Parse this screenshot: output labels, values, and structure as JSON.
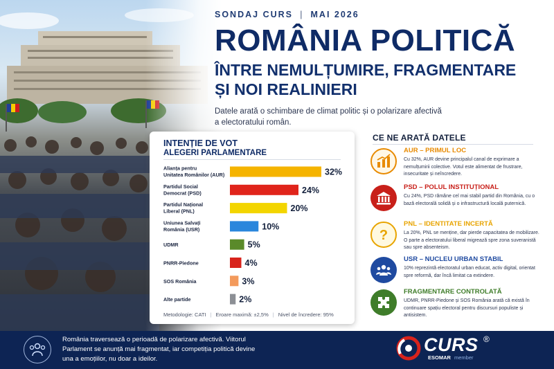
{
  "header": {
    "kicker_left": "SONDAJ CURS",
    "kicker_sep": "|",
    "kicker_right": "MAI 2026",
    "title": "ROMÂNIA POLITICĂ",
    "subtitle_line1": "ÎNTRE NEMULȚUMIRE, FRAGMENTARE",
    "subtitle_line2": "ȘI NOI REALINIERI",
    "lead": "Datele arată o schimbare de climat politic și o polarizare afectivă a electoratului român."
  },
  "chart_card": {
    "title": "INTENȚIE DE VOT",
    "subtitle": "ALEGERI PARLAMENTARE",
    "footer": {
      "method": "Metodologie: CATI",
      "error": "Eroare maximă: ±2,5%",
      "confidence": "Nivel de încredere: 95%",
      "separator": "|"
    }
  },
  "chart_data": {
    "type": "bar",
    "orientation": "horizontal",
    "title": "INTENȚIE DE VOT",
    "subtitle": "ALEGERI PARLAMENTARE",
    "categories": [
      [
        "Alianța pentru",
        "Unitatea Românilor (AUR)"
      ],
      [
        "Partidul Social",
        "Democrat (PSD)"
      ],
      [
        "Partidul Național",
        "Liberal (PNL)"
      ],
      [
        "Uniunea Salvați",
        "România (USR)"
      ],
      [
        "UDMR"
      ],
      [
        "PNRR-Piedone"
      ],
      [
        "SOS România"
      ],
      [
        "Alte partide"
      ]
    ],
    "values": [
      32,
      24,
      20,
      10,
      5,
      4,
      3,
      2
    ],
    "value_labels": [
      "32%",
      "24%",
      "20%",
      "10%",
      "5%",
      "4%",
      "3%",
      "2%"
    ],
    "colors": [
      "#f5b400",
      "#e0241b",
      "#f3d500",
      "#2a86dc",
      "#5a8a2a",
      "#d8231c",
      "#f39a5c",
      "#8c8f95"
    ],
    "xlim": [
      0,
      32
    ],
    "unit": "%",
    "grid": false,
    "legend": "none"
  },
  "insights": {
    "title": "CE NE ARATĂ DATELE",
    "items": [
      {
        "heading": "AUR – PRIMUL LOC",
        "color": "#e88a00",
        "icon": "bar-chart-icon",
        "text": "Cu 32%, AUR devine principalul canal de exprimare a nemulțumirii colective. Votul este alimentat de frustrare, insecuritate și neîncredere."
      },
      {
        "heading": "PSD – POLUL INSTITUȚIONAL",
        "color": "#c8201a",
        "icon": "institution-icon",
        "text": "Cu 24%, PSD rămâne cel mai stabil partid din România, cu o bază electorală solidă și o infrastructură locală puternică."
      },
      {
        "heading": "PNL – IDENTITATE INCERTĂ",
        "color": "#e8a400",
        "icon": "question-icon",
        "text": "La 20%, PNL se menține, dar pierde capacitatea de mobilizare. O parte a electoratului liberal migrează spre zona suveranistă sau spre absenteism."
      },
      {
        "heading": "USR – NUCLEU URBAN STABIL",
        "color": "#1f4aa0",
        "icon": "people-icon",
        "text": "10% reprezintă electoratul urban educat, activ digital, orientat spre reformă, dar încă limitat ca extindere."
      },
      {
        "heading": "FRAGMENTARE CONTROLATĂ",
        "color": "#3f7d2a",
        "icon": "puzzle-icon",
        "text": "UDMR, PNRR-Piedone și SOS România arată că există în continuare spațiu electoral pentru discursuri populiste și antisistem."
      }
    ]
  },
  "footer": {
    "text": "România traversează o perioadă de polarizare afectivă. Viitorul Parlament se anunță mai fragmentat, iar competiția politică devine una a emoțiilor, nu doar a ideilor.",
    "icon": "group-icon",
    "logo_word": "CURS",
    "logo_reg": "®",
    "logo_esomar": "ESOMAR",
    "logo_member": "member"
  }
}
